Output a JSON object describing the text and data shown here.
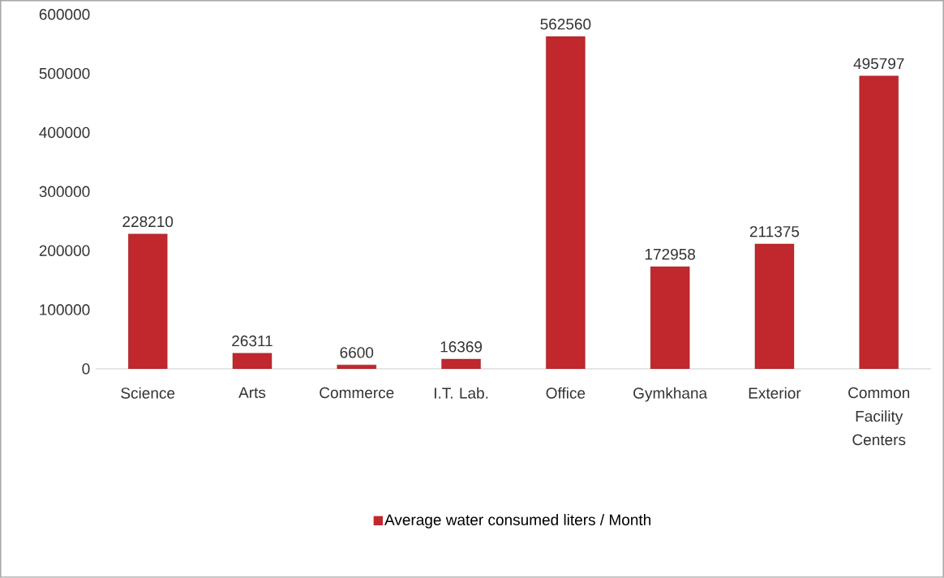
{
  "chart_data": {
    "type": "bar",
    "categories": [
      "Science",
      "Arts",
      "Commerce",
      "I.T. Lab.",
      "Office",
      "Gymkhana",
      "Exterior",
      "Common Facility Centers"
    ],
    "series": [
      {
        "name": "Average water consumed liters / Month",
        "color": "#c0282d",
        "values": [
          228210,
          26311,
          6600,
          16369,
          562560,
          172958,
          211375,
          495797
        ]
      }
    ],
    "ylim": [
      0,
      600000
    ],
    "yticks": [
      0,
      100000,
      200000,
      300000,
      400000,
      500000,
      600000
    ],
    "data_labels": true,
    "legend": "bottom",
    "grid": false
  }
}
